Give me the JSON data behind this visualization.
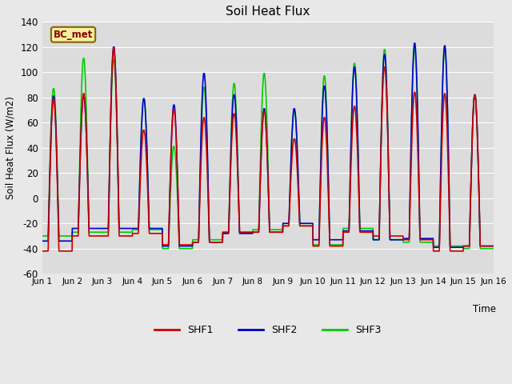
{
  "title": "Soil Heat Flux",
  "ylabel": "Soil Heat Flux (W/m2)",
  "xlabel": "Time",
  "ylim": [
    -60,
    140
  ],
  "yticks": [
    -60,
    -40,
    -20,
    0,
    20,
    40,
    60,
    80,
    100,
    120,
    140
  ],
  "fig_bg_color": "#e8e8e8",
  "plot_bg_color": "#dcdcdc",
  "shf1_color": "#cc0000",
  "shf2_color": "#0000cc",
  "shf3_color": "#00cc00",
  "legend_label": "BC_met",
  "legend_box_color": "#f5f0a0",
  "legend_box_edge": "#8b6000",
  "line_width": 1.2,
  "num_days": 15,
  "points_per_day": 144,
  "x_tick_labels": [
    "Jun 1",
    "Jun 2",
    "Jun 3",
    "Jun 4",
    "Jun 5",
    "Jun 6",
    "Jun 7",
    "Jun 8",
    "Jun 9",
    "Jun 10",
    "Jun 11",
    "Jun 12",
    "Jun 13",
    "Jun 14",
    "Jun 15",
    "Jun 16"
  ],
  "series_labels": [
    "SHF1",
    "SHF2",
    "SHF3"
  ],
  "day_peaks": [
    {
      "shf1_min": -42,
      "shf1_max": 80,
      "shf2_min": -34,
      "shf2_max": 82,
      "shf3_min": -30,
      "shf3_max": 88
    },
    {
      "shf1_min": -30,
      "shf1_max": 84,
      "shf2_min": -24,
      "shf2_max": 82,
      "shf3_min": -27,
      "shf3_max": 112
    },
    {
      "shf1_min": -30,
      "shf1_max": 120,
      "shf2_min": -24,
      "shf2_max": 121,
      "shf3_min": -27,
      "shf3_max": 111
    },
    {
      "shf1_min": -28,
      "shf1_max": 55,
      "shf2_min": -24,
      "shf2_max": 80,
      "shf3_min": -25,
      "shf3_max": 80
    },
    {
      "shf1_min": -37,
      "shf1_max": 71,
      "shf2_min": -38,
      "shf2_max": 75,
      "shf3_min": -40,
      "shf3_max": 42
    },
    {
      "shf1_min": -35,
      "shf1_max": 65,
      "shf2_min": -35,
      "shf2_max": 100,
      "shf3_min": -33,
      "shf3_max": 89
    },
    {
      "shf1_min": -27,
      "shf1_max": 68,
      "shf2_min": -28,
      "shf2_max": 83,
      "shf3_min": -27,
      "shf3_max": 92
    },
    {
      "shf1_min": -27,
      "shf1_max": 70,
      "shf2_min": -27,
      "shf2_max": 72,
      "shf3_min": -25,
      "shf3_max": 100
    },
    {
      "shf1_min": -22,
      "shf1_max": 48,
      "shf2_min": -20,
      "shf2_max": 72,
      "shf3_min": -22,
      "shf3_max": 70
    },
    {
      "shf1_min": -38,
      "shf1_max": 65,
      "shf2_min": -33,
      "shf2_max": 90,
      "shf3_min": -37,
      "shf3_max": 98
    },
    {
      "shf1_min": -27,
      "shf1_max": 74,
      "shf2_min": -26,
      "shf2_max": 105,
      "shf3_min": -24,
      "shf3_max": 108
    },
    {
      "shf1_min": -30,
      "shf1_max": 105,
      "shf2_min": -33,
      "shf2_max": 115,
      "shf3_min": -33,
      "shf3_max": 119
    },
    {
      "shf1_min": -33,
      "shf1_max": 85,
      "shf2_min": -32,
      "shf2_max": 124,
      "shf3_min": -35,
      "shf3_max": 120
    },
    {
      "shf1_min": -42,
      "shf1_max": 84,
      "shf2_min": -39,
      "shf2_max": 122,
      "shf3_min": -38,
      "shf3_max": 120
    },
    {
      "shf1_min": -38,
      "shf1_max": 83,
      "shf2_min": -38,
      "shf2_max": 83,
      "shf3_min": -40,
      "shf3_max": 83
    }
  ]
}
